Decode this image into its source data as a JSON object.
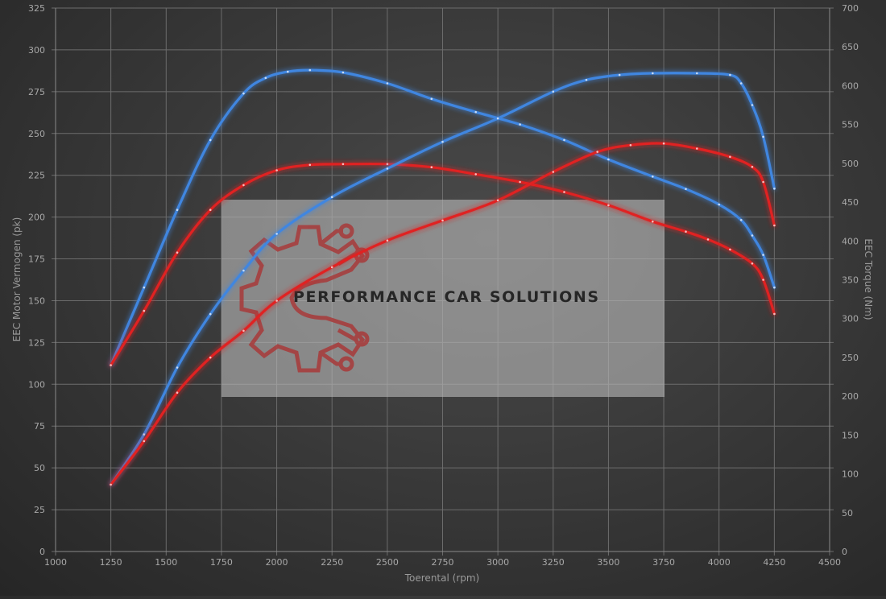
{
  "colors": {
    "blue": "#3f86e0",
    "red": "#e02020",
    "grid": "#6c6c6c",
    "logo_red": "#a83a3a"
  },
  "logo": {
    "text": "PERFORMANCE CAR SOLUTIONS",
    "icon": "gear-circuit-icon"
  },
  "chart_data": {
    "type": "line",
    "xlabel": "Toerental (rpm)",
    "ylabel_left": "EEC Motor Vermogen (pk)",
    "ylabel_right": "EEC Torque (Nm)",
    "xlim": [
      1000,
      4500
    ],
    "ylim_left": [
      0,
      325
    ],
    "ylim_right": [
      0,
      700
    ],
    "x_ticks": [
      "1000",
      "1250",
      "1500",
      "1750",
      "2000",
      "2250",
      "2500",
      "2750",
      "3000",
      "3250",
      "3500",
      "3750",
      "4000",
      "4250",
      "4500"
    ],
    "y_left_ticks": [
      "0",
      "25",
      "50",
      "75",
      "100",
      "125",
      "150",
      "175",
      "200",
      "225",
      "250",
      "275",
      "300",
      "325"
    ],
    "y_right_ticks": [
      "0",
      "50",
      "100",
      "150",
      "200",
      "250",
      "300",
      "350",
      "400",
      "450",
      "500",
      "550",
      "600",
      "650",
      "700"
    ],
    "grid": true,
    "legend": "none",
    "series": [
      {
        "color": "blue",
        "axis": "right",
        "kind": "torque",
        "x": [
          1250,
          1400,
          1550,
          1700,
          1850,
          1950,
          2050,
          2150,
          2300,
          2500,
          2700,
          2900,
          3100,
          3300,
          3500,
          3700,
          3850,
          4000,
          4100,
          4150,
          4200,
          4250
        ],
        "y": [
          240,
          340,
          440,
          530,
          590,
          610,
          618,
          620,
          617,
          603,
          583,
          566,
          550,
          530,
          505,
          483,
          467,
          447,
          427,
          407,
          382,
          340
        ]
      },
      {
        "color": "red",
        "axis": "right",
        "kind": "torque",
        "x": [
          1250,
          1400,
          1550,
          1700,
          1850,
          2000,
          2150,
          2300,
          2500,
          2700,
          2900,
          3100,
          3300,
          3500,
          3700,
          3850,
          3950,
          4050,
          4150,
          4200,
          4250
        ],
        "y": [
          240,
          310,
          385,
          440,
          472,
          491,
          498,
          499,
          499,
          495,
          486,
          476,
          463,
          446,
          425,
          412,
          402,
          389,
          371,
          350,
          306
        ]
      },
      {
        "color": "blue",
        "axis": "left",
        "kind": "power",
        "x": [
          1250,
          1400,
          1550,
          1700,
          1850,
          2000,
          2250,
          2500,
          2750,
          3000,
          3250,
          3400,
          3550,
          3700,
          3900,
          4050,
          4100,
          4150,
          4200,
          4250
        ],
        "y": [
          40,
          70,
          110,
          142,
          168,
          190,
          212,
          229,
          245,
          259,
          275,
          282,
          285,
          286,
          286,
          285,
          280,
          267,
          248,
          217
        ]
      },
      {
        "color": "red",
        "axis": "left",
        "kind": "power",
        "x": [
          1250,
          1400,
          1550,
          1700,
          1850,
          2000,
          2250,
          2500,
          2750,
          3000,
          3250,
          3450,
          3600,
          3750,
          3900,
          4050,
          4150,
          4200,
          4250
        ],
        "y": [
          40,
          66,
          95,
          116,
          132,
          150,
          170,
          186,
          198,
          210,
          227,
          239,
          243,
          244,
          241,
          236,
          230,
          221,
          195
        ]
      }
    ]
  }
}
